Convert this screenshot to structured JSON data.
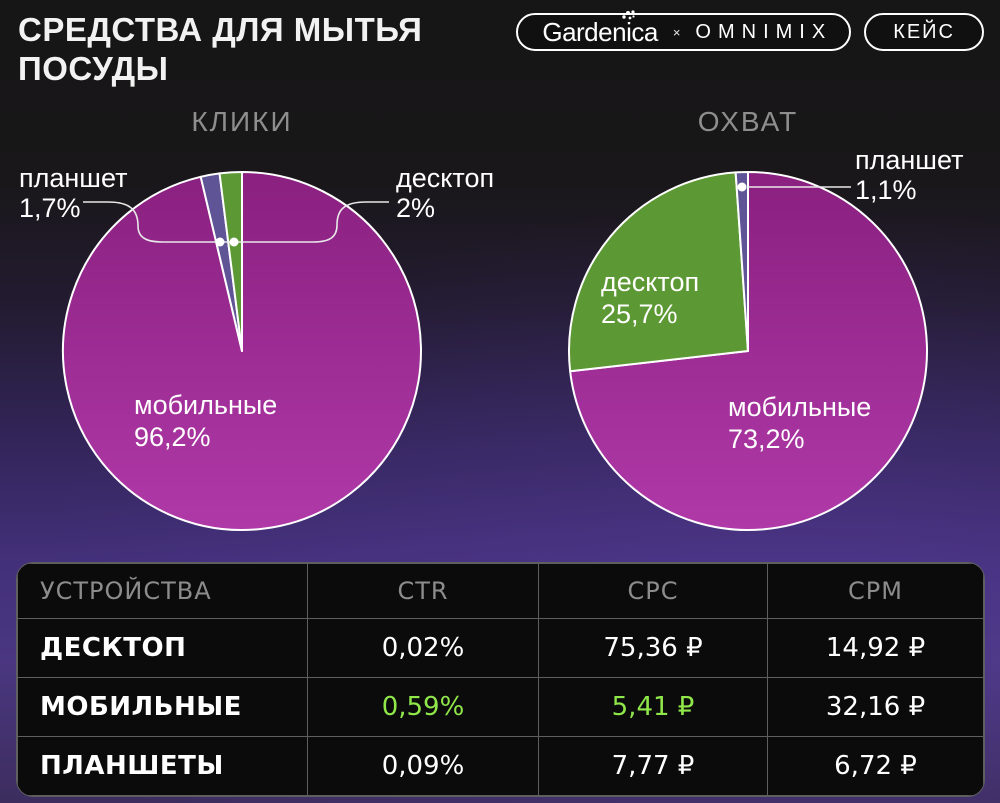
{
  "header": {
    "title": "СРЕДСТВА ДЛЯ МЫТЬЯ ПОСУДЫ",
    "brand_left": "Gardenica",
    "brand_separator": "×",
    "brand_right": "OMNIMIX",
    "case_label": "КЕЙС"
  },
  "colors": {
    "accent": "#8FE74A",
    "desktop": "#5C9833",
    "tablet": "#5F5596",
    "mobile_top": "#8A2080",
    "mobile_bottom": "#B039A8",
    "bg_top": "#161616",
    "bg_purple": "#43307A",
    "bg_bottom": "#3C2D5E",
    "heading_gray": "#8E8E8E"
  },
  "chart_data": [
    {
      "type": "pie",
      "title": "КЛИКИ",
      "unit": "%",
      "start_angle_deg": 0,
      "direction": "clockwise",
      "slices": [
        {
          "label": "мобильные",
          "value": 96.2,
          "display": "96,2%",
          "color": "mobile"
        },
        {
          "label": "планшет",
          "value": 1.7,
          "display": "1,7%",
          "color": "tablet"
        },
        {
          "label": "десктоп",
          "value": 2.0,
          "display": "2%",
          "color": "desktop"
        }
      ]
    },
    {
      "type": "pie",
      "title": "ОХВАТ",
      "unit": "%",
      "start_angle_deg": 0,
      "direction": "clockwise",
      "slices": [
        {
          "label": "мобильные",
          "value": 73.2,
          "display": "73,2%",
          "color": "mobile"
        },
        {
          "label": "десктоп",
          "value": 25.7,
          "display": "25,7%",
          "color": "desktop"
        },
        {
          "label": "планшет",
          "value": 1.1,
          "display": "1,1%",
          "color": "tablet"
        }
      ]
    }
  ],
  "table": {
    "columns": [
      "УСТРОЙСТВА",
      "CTR",
      "CPC",
      "CPM"
    ],
    "rows": [
      {
        "device": "ДЕСКТОП",
        "ctr": "0,02%",
        "cpc": "75,36 ₽",
        "cpm": "14,92 ₽"
      },
      {
        "device": "МОБИЛЬНЫЕ",
        "ctr": "0,59%",
        "cpc": "5,41 ₽",
        "cpm": "32,16 ₽"
      },
      {
        "device": "ПЛАНШЕТЫ",
        "ctr": "0,09%",
        "cpc": "7,77 ₽",
        "cpm": "6,72 ₽"
      }
    ]
  }
}
